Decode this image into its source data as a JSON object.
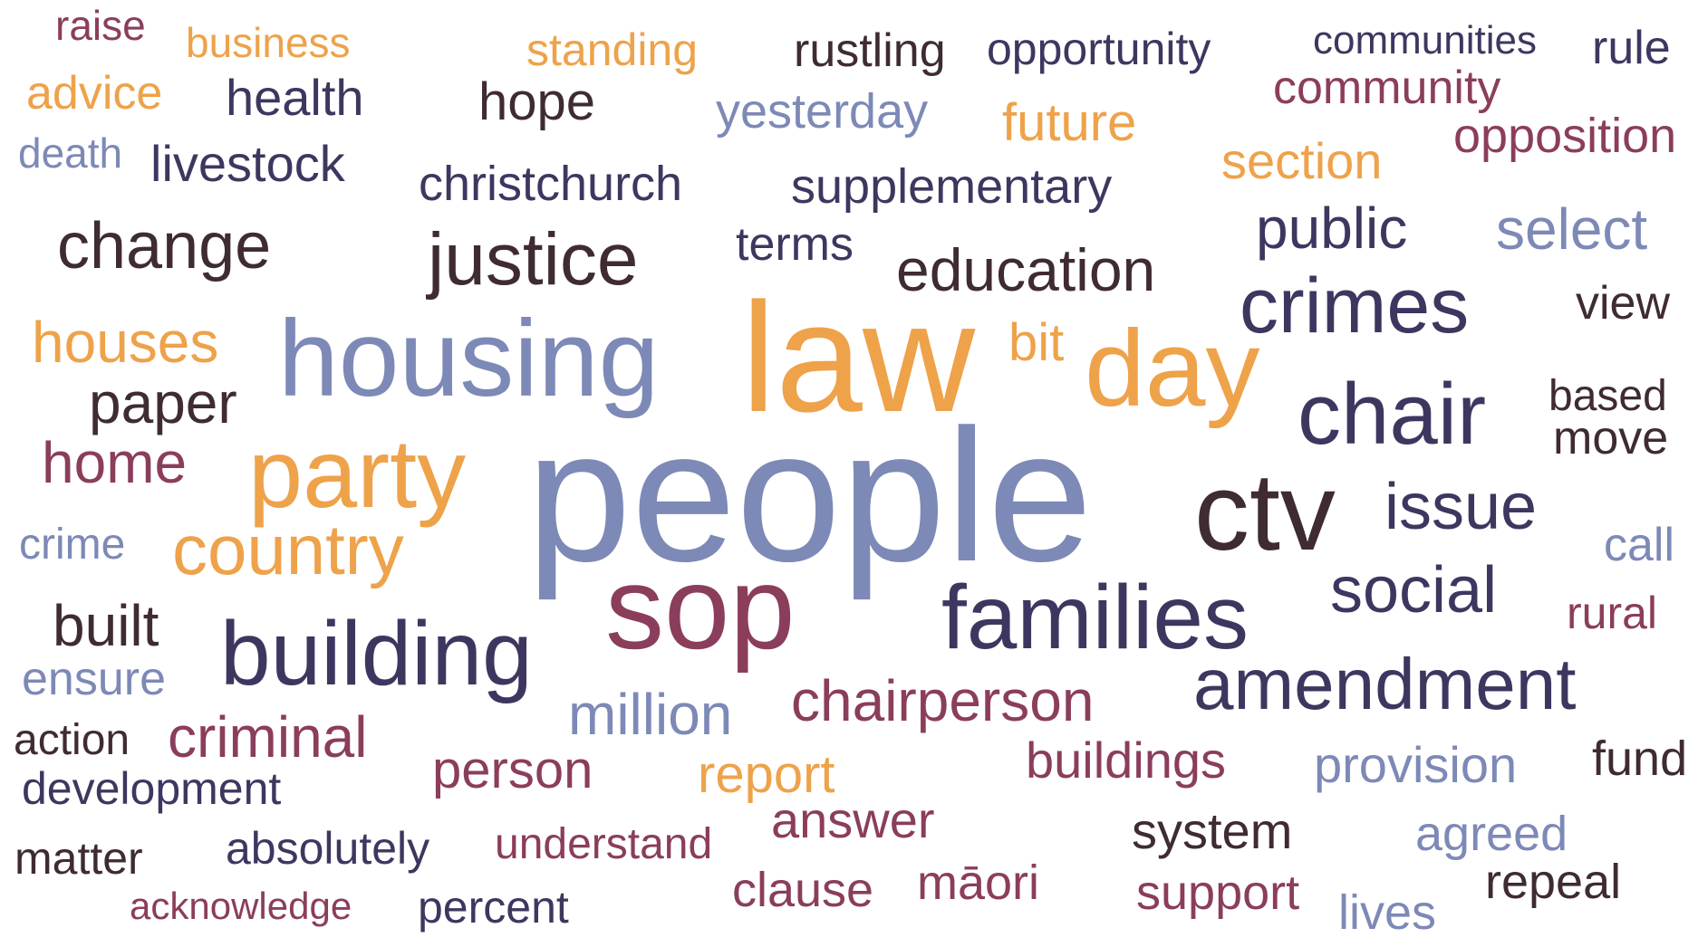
{
  "palette": {
    "blue": "#7d89b6",
    "orange": "#eea24a",
    "plum": "#8b3d5c",
    "navy": "#3f3660",
    "dark": "#3f2b32"
  },
  "words": [
    {
      "text": "people",
      "color": "blue"
    },
    {
      "text": "law",
      "color": "orange"
    },
    {
      "text": "housing",
      "color": "blue"
    },
    {
      "text": "day",
      "color": "orange"
    },
    {
      "text": "sop",
      "color": "plum"
    },
    {
      "text": "ctv",
      "color": "dark"
    },
    {
      "text": "families",
      "color": "navy"
    },
    {
      "text": "party",
      "color": "orange"
    },
    {
      "text": "building",
      "color": "navy"
    },
    {
      "text": "chair",
      "color": "navy"
    },
    {
      "text": "crimes",
      "color": "navy"
    },
    {
      "text": "justice",
      "color": "dark"
    },
    {
      "text": "amendment",
      "color": "navy"
    },
    {
      "text": "country",
      "color": "orange"
    },
    {
      "text": "change",
      "color": "dark"
    },
    {
      "text": "education",
      "color": "dark"
    },
    {
      "text": "issue",
      "color": "navy"
    },
    {
      "text": "social",
      "color": "navy"
    },
    {
      "text": "chairperson",
      "color": "plum"
    },
    {
      "text": "houses",
      "color": "orange"
    },
    {
      "text": "public",
      "color": "navy"
    },
    {
      "text": "select",
      "color": "blue"
    },
    {
      "text": "million",
      "color": "blue"
    },
    {
      "text": "home",
      "color": "plum"
    },
    {
      "text": "paper",
      "color": "dark"
    },
    {
      "text": "criminal",
      "color": "plum"
    },
    {
      "text": "built",
      "color": "dark"
    },
    {
      "text": "hope",
      "color": "dark"
    },
    {
      "text": "future",
      "color": "orange"
    },
    {
      "text": "report",
      "color": "orange"
    },
    {
      "text": "person",
      "color": "plum"
    },
    {
      "text": "livestock",
      "color": "navy"
    },
    {
      "text": "health",
      "color": "navy"
    },
    {
      "text": "section",
      "color": "orange"
    },
    {
      "text": "buildings",
      "color": "plum"
    },
    {
      "text": "provision",
      "color": "blue"
    },
    {
      "text": "christchurch",
      "color": "navy"
    },
    {
      "text": "supplementary",
      "color": "navy"
    },
    {
      "text": "yesterday",
      "color": "blue"
    },
    {
      "text": "rustling",
      "color": "dark"
    },
    {
      "text": "answer",
      "color": "plum"
    },
    {
      "text": "system",
      "color": "dark"
    },
    {
      "text": "opposition",
      "color": "plum"
    },
    {
      "text": "community",
      "color": "plum"
    },
    {
      "text": "advice",
      "color": "orange"
    },
    {
      "text": "ensure",
      "color": "blue"
    },
    {
      "text": "standing",
      "color": "orange"
    },
    {
      "text": "terms",
      "color": "navy"
    },
    {
      "text": "opportunity",
      "color": "navy"
    },
    {
      "text": "bit",
      "color": "orange"
    },
    {
      "text": "view",
      "color": "dark"
    },
    {
      "text": "based",
      "color": "dark"
    },
    {
      "text": "move",
      "color": "dark"
    },
    {
      "text": "call",
      "color": "blue"
    },
    {
      "text": "rural",
      "color": "plum"
    },
    {
      "text": "fund",
      "color": "dark"
    },
    {
      "text": "agreed",
      "color": "blue"
    },
    {
      "text": "repeal",
      "color": "dark"
    },
    {
      "text": "support",
      "color": "plum"
    },
    {
      "text": "lives",
      "color": "blue"
    },
    {
      "text": "clause",
      "color": "plum"
    },
    {
      "text": "māori",
      "color": "plum"
    },
    {
      "text": "understand",
      "color": "plum"
    },
    {
      "text": "absolutely",
      "color": "navy"
    },
    {
      "text": "percent",
      "color": "navy"
    },
    {
      "text": "acknowledge",
      "color": "plum"
    },
    {
      "text": "matter",
      "color": "dark"
    },
    {
      "text": "development",
      "color": "navy"
    },
    {
      "text": "action",
      "color": "dark"
    },
    {
      "text": "crime",
      "color": "blue"
    },
    {
      "text": "death",
      "color": "blue"
    },
    {
      "text": "raise",
      "color": "plum"
    },
    {
      "text": "business",
      "color": "orange"
    },
    {
      "text": "communities",
      "color": "navy"
    },
    {
      "text": "rule",
      "color": "navy"
    }
  ]
}
